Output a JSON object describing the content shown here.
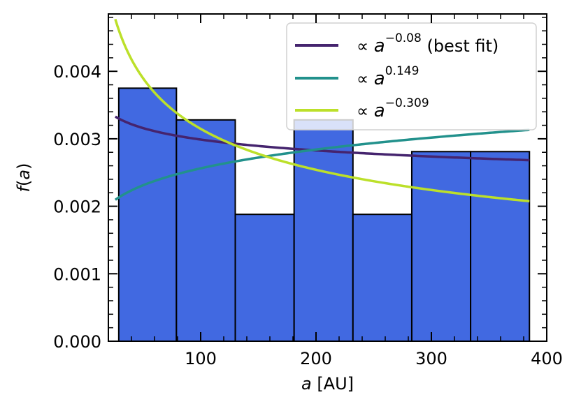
{
  "chart_data": {
    "type": "bar",
    "title": "",
    "xlabel": {
      "var": "a",
      "unit": " [AU]"
    },
    "ylabel": {
      "func": "f(",
      "var": "a",
      "close": ")"
    },
    "xlim": [
      20,
      400
    ],
    "ylim": [
      0,
      0.00485
    ],
    "xticks": [
      100,
      200,
      300,
      400
    ],
    "xtick_labels": [
      "100",
      "200",
      "300",
      "400"
    ],
    "yticks": [
      0.0,
      0.001,
      0.002,
      0.003,
      0.004
    ],
    "ytick_labels": [
      "0.000",
      "0.001",
      "0.002",
      "0.003",
      "0.004"
    ],
    "bar_color": "#4169e1",
    "bar_edge_color": "#000000",
    "bins": [
      {
        "x0": 29,
        "x1": 79,
        "value": 0.00375
      },
      {
        "x0": 79,
        "x1": 130,
        "value": 0.00328
      },
      {
        "x0": 130,
        "x1": 181,
        "value": 0.00188
      },
      {
        "x0": 181,
        "x1": 232,
        "value": 0.00328
      },
      {
        "x0": 232,
        "x1": 283,
        "value": 0.00188
      },
      {
        "x0": 283,
        "x1": 334,
        "value": 0.00281
      },
      {
        "x0": 334,
        "x1": 385,
        "value": 0.00281
      }
    ],
    "series": [
      {
        "name": "best fit",
        "legend_prefix": "∝ ",
        "legend_base": "a",
        "exponent": "−0.08",
        "legend_suffix": " (best fit)",
        "power": -0.08,
        "c": 0.00432,
        "color": "#45246e"
      },
      {
        "name": "0.149",
        "legend_prefix": "∝ ",
        "legend_base": "a",
        "exponent": "0.149",
        "legend_suffix": "",
        "power": 0.149,
        "c": 0.00129,
        "color": "#22918c"
      },
      {
        "name": "-0.309",
        "legend_prefix": "∝ ",
        "legend_base": "a",
        "exponent": "−0.309",
        "legend_suffix": "",
        "power": -0.309,
        "c": 0.01306,
        "color": "#bce02a"
      }
    ],
    "curve_x_range": [
      26,
      385
    ],
    "legend_position": "top-right",
    "grid": false
  }
}
